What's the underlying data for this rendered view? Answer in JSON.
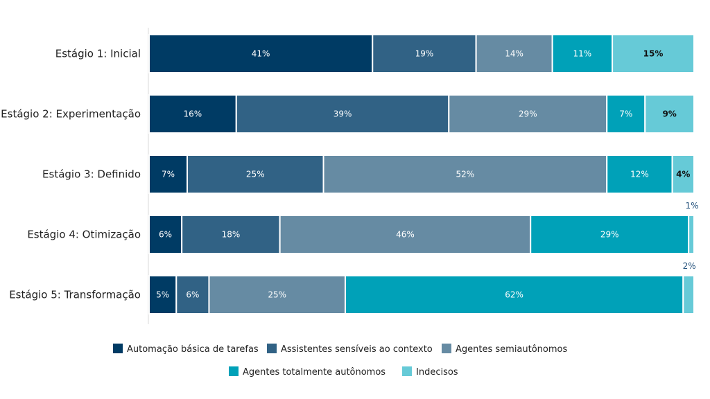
{
  "chart_data": {
    "type": "bar",
    "orientation": "horizontal",
    "stacked": true,
    "categories": [
      "Estágio 1: Inicial",
      "Estágio 2: Experimentação",
      "Estágio 3: Definido",
      "Estágio 4: Otimização",
      "Estágio 5: Transformação"
    ],
    "series": [
      {
        "name": "Automação básica de tarefas",
        "color": "#003b64",
        "values": [
          41,
          16,
          7,
          6,
          5
        ]
      },
      {
        "name": "Assistentes sensíveis ao contexto",
        "color": "#316285",
        "values": [
          19,
          39,
          25,
          18,
          6
        ]
      },
      {
        "name": "Agentes semiautônomos",
        "color": "#668ba3",
        "values": [
          14,
          29,
          52,
          46,
          25
        ]
      },
      {
        "name": "Agentes totalmente autônomos",
        "color": "#00a1b8",
        "values": [
          11,
          7,
          12,
          29,
          62
        ]
      },
      {
        "name": "Indecisos",
        "color": "#66cad7",
        "values": [
          15,
          9,
          4,
          1,
          2
        ]
      }
    ],
    "value_suffix": "%",
    "xlim": [
      0,
      100
    ],
    "title": "",
    "xlabel": "",
    "ylabel": "",
    "legend": "bottom",
    "grid": false
  }
}
